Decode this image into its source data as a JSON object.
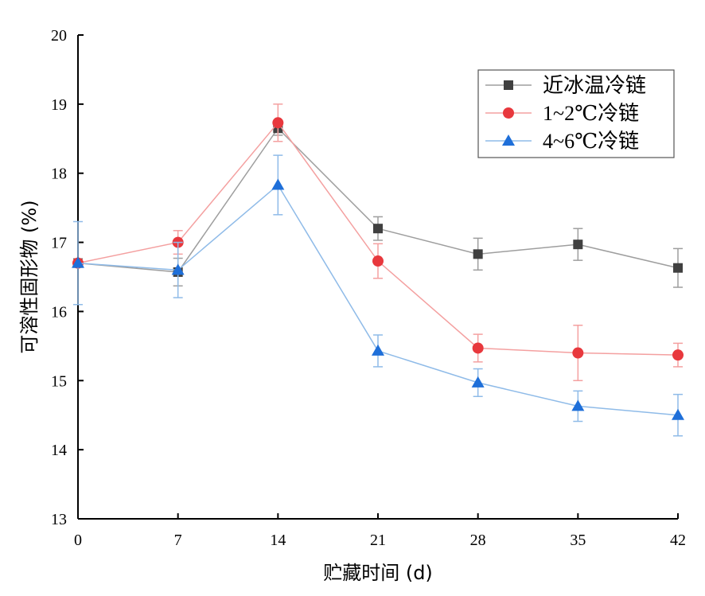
{
  "chart_data": {
    "type": "line",
    "xlabel": "贮藏时间 (d)",
    "ylabel": "可溶性固形物 (%)",
    "x": [
      0,
      7,
      14,
      21,
      28,
      35,
      42
    ],
    "xlim": [
      0,
      42
    ],
    "ylim": [
      13,
      20
    ],
    "yticks": [
      13,
      14,
      15,
      16,
      17,
      18,
      19,
      20
    ],
    "grid": false,
    "legend_position": "top-right",
    "series": [
      {
        "name": "近冰温冷链",
        "color": "#404040",
        "line_color": "#9e9e9e",
        "marker": "square",
        "values": [
          16.7,
          16.57,
          18.65,
          17.2,
          16.83,
          16.97,
          16.63
        ],
        "errors": [
          0.05,
          0.2,
          0.1,
          0.17,
          0.23,
          0.23,
          0.28
        ]
      },
      {
        "name": "1~2℃冷链",
        "color": "#e8383d",
        "line_color": "#f4a0a0",
        "marker": "circle",
        "values": [
          16.7,
          17.0,
          18.73,
          16.73,
          15.47,
          15.4,
          15.37
        ],
        "errors": [
          0.05,
          0.17,
          0.27,
          0.25,
          0.2,
          0.4,
          0.17
        ]
      },
      {
        "name": "4~6℃冷链",
        "color": "#1e6fd9",
        "line_color": "#8fbbe8",
        "marker": "triangle",
        "values": [
          16.7,
          16.6,
          17.83,
          15.43,
          14.97,
          14.63,
          14.5
        ],
        "errors": [
          0.6,
          0.4,
          0.43,
          0.23,
          0.2,
          0.22,
          0.3
        ]
      }
    ]
  }
}
